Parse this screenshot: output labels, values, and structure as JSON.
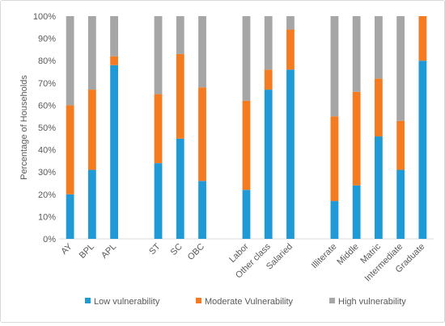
{
  "chart_data": {
    "type": "bar",
    "stacked": true,
    "percent_stacked": true,
    "ylabel": "Percentage of Households",
    "xlabel": "",
    "ylim": [
      0,
      100
    ],
    "y_ticks": [
      "0%",
      "10%",
      "20%",
      "30%",
      "40%",
      "50%",
      "60%",
      "70%",
      "80%",
      "90%",
      "100%"
    ],
    "grid": false,
    "legend_position": "bottom",
    "groups": [
      {
        "categories": [
          "AY",
          "BPL",
          "APL"
        ]
      },
      {
        "categories": [
          "ST",
          "SC",
          "OBC"
        ]
      },
      {
        "categories": [
          "Labor",
          "Other class",
          "Salaried"
        ]
      },
      {
        "categories": [
          "Illiterate",
          "Middle",
          "Matric",
          "Intermediate",
          "Graduate"
        ]
      }
    ],
    "categories": [
      "AY",
      "BPL",
      "APL",
      "ST",
      "SC",
      "OBC",
      "Labor",
      "Other class",
      "Salaried",
      "Illiterate",
      "Middle",
      "Matric",
      "Intermediate",
      "Graduate"
    ],
    "series": [
      {
        "name": "Low vulnerability",
        "color": "#1f9ad6",
        "values": [
          20,
          31,
          78,
          34,
          45,
          26,
          22,
          67,
          76,
          17,
          24,
          46,
          31,
          80
        ]
      },
      {
        "name": "Moderate Vulnerability",
        "color": "#f47b20",
        "values": [
          40,
          36,
          4,
          31,
          38,
          42,
          40,
          9,
          18,
          38,
          42,
          26,
          22,
          20
        ]
      },
      {
        "name": "High vulnerability",
        "color": "#a6a6a6",
        "values": [
          40,
          33,
          18,
          35,
          17,
          32,
          38,
          24,
          6,
          45,
          34,
          28,
          47,
          0
        ]
      }
    ]
  }
}
